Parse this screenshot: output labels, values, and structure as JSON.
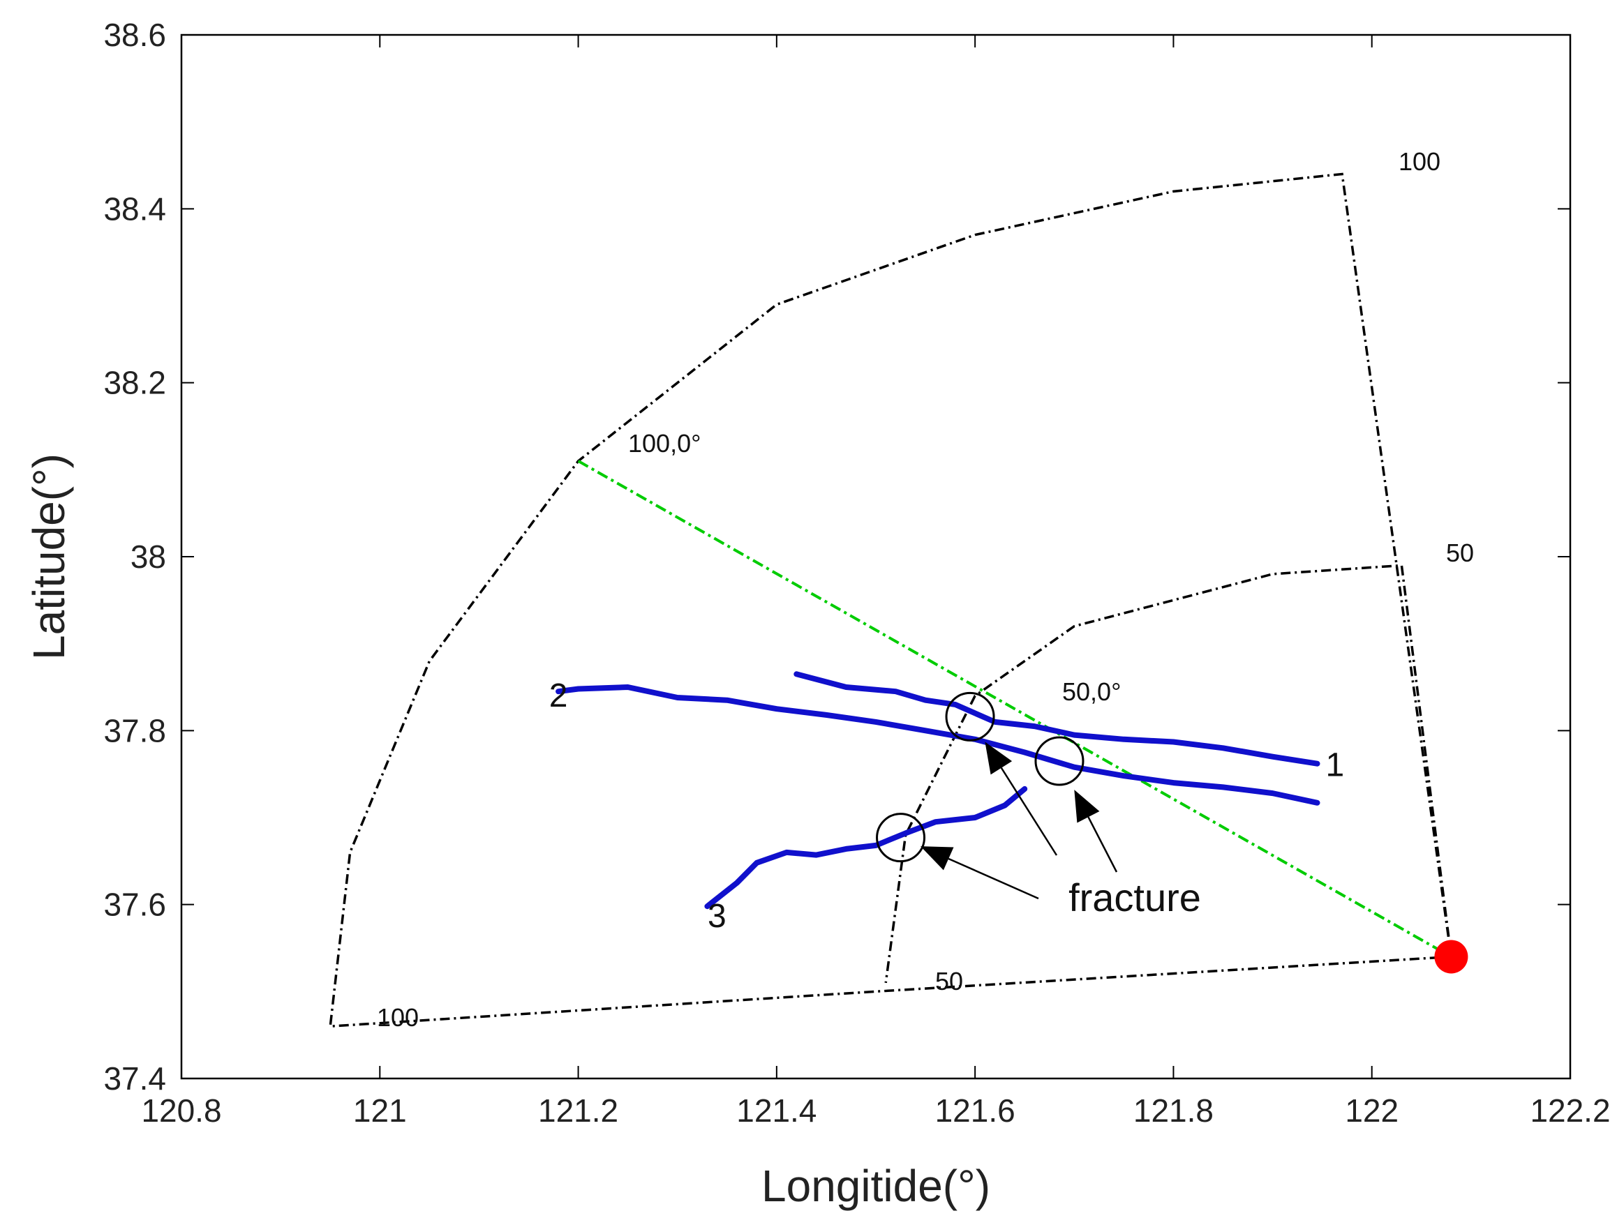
{
  "chart_data": {
    "type": "line",
    "title": "",
    "xlabel": "Longitide(°)",
    "ylabel": "Latitude(°)",
    "xlim": [
      120.8,
      122.2
    ],
    "ylim": [
      37.4,
      38.6
    ],
    "xticks": [
      "120.8",
      "121",
      "121.2",
      "121.4",
      "121.6",
      "121.8",
      "122",
      "122.2"
    ],
    "yticks": [
      "37.4",
      "37.6",
      "37.8",
      "38",
      "38.2",
      "38.4",
      "38.6"
    ],
    "grid": false,
    "colors": {
      "tracks": "#1010cc",
      "sector": "#000000",
      "beam": "#00cc00",
      "radar": "#ff0000"
    },
    "radar": {
      "lon": 122.08,
      "lat": 37.54
    },
    "sector_outer": [
      [
        122.08,
        37.54
      ],
      [
        121.97,
        38.44
      ],
      [
        121.8,
        38.42
      ],
      [
        121.6,
        38.37
      ],
      [
        121.4,
        38.29
      ],
      [
        121.2,
        38.11
      ],
      [
        121.05,
        37.88
      ],
      [
        120.97,
        37.66
      ],
      [
        120.95,
        37.46
      ],
      [
        121.5,
        37.5
      ],
      [
        122.08,
        37.54
      ]
    ],
    "sector_inner": [
      [
        122.08,
        37.54
      ],
      [
        122.03,
        37.99
      ],
      [
        121.9,
        37.98
      ],
      [
        121.7,
        37.92
      ],
      [
        121.6,
        37.84
      ],
      [
        121.53,
        37.68
      ],
      [
        121.51,
        37.51
      ]
    ],
    "beam_line": [
      [
        121.2,
        38.11
      ],
      [
        122.08,
        37.54
      ]
    ],
    "series": [
      {
        "name": "1",
        "points": [
          [
            121.42,
            37.865
          ],
          [
            121.47,
            37.85
          ],
          [
            121.52,
            37.845
          ],
          [
            121.55,
            37.835
          ],
          [
            121.58,
            37.83
          ],
          [
            121.62,
            37.81
          ],
          [
            121.66,
            37.805
          ],
          [
            121.7,
            37.795
          ],
          [
            121.75,
            37.79
          ],
          [
            121.8,
            37.787
          ],
          [
            121.85,
            37.78
          ],
          [
            121.9,
            37.77
          ],
          [
            121.945,
            37.762
          ]
        ]
      },
      {
        "name": "2",
        "points": [
          [
            121.18,
            37.845
          ],
          [
            121.2,
            37.848
          ],
          [
            121.25,
            37.85
          ],
          [
            121.3,
            37.838
          ],
          [
            121.35,
            37.835
          ],
          [
            121.4,
            37.825
          ],
          [
            121.45,
            37.818
          ],
          [
            121.5,
            37.81
          ],
          [
            121.55,
            37.8
          ],
          [
            121.6,
            37.79
          ],
          [
            121.65,
            37.775
          ],
          [
            121.7,
            37.758
          ],
          [
            121.75,
            37.748
          ],
          [
            121.8,
            37.74
          ],
          [
            121.85,
            37.735
          ],
          [
            121.9,
            37.728
          ],
          [
            121.945,
            37.717
          ]
        ]
      },
      {
        "name": "3",
        "points": [
          [
            121.33,
            37.598
          ],
          [
            121.36,
            37.625
          ],
          [
            121.38,
            37.648
          ],
          [
            121.41,
            37.66
          ],
          [
            121.44,
            37.657
          ],
          [
            121.47,
            37.664
          ],
          [
            121.5,
            37.668
          ],
          [
            121.53,
            37.682
          ],
          [
            121.56,
            37.695
          ],
          [
            121.6,
            37.7
          ],
          [
            121.63,
            37.714
          ],
          [
            121.65,
            37.733
          ]
        ]
      }
    ],
    "annotations": {
      "outer_range_label": "100",
      "inner_range_label": "50",
      "outer_arc_label": "100,0°",
      "inner_arc_label": "50,0°",
      "bottom_outer_label": "100",
      "bottom_inner_label": "50",
      "fracture_label": "fracture"
    },
    "fractures": [
      [
        121.595,
        37.816
      ],
      [
        121.685,
        37.765
      ],
      [
        121.525,
        37.677
      ]
    ],
    "fracture_arrows_to": [
      [
        121.61,
        37.787
      ],
      [
        121.7,
        37.732
      ],
      [
        121.545,
        37.667
      ]
    ]
  }
}
